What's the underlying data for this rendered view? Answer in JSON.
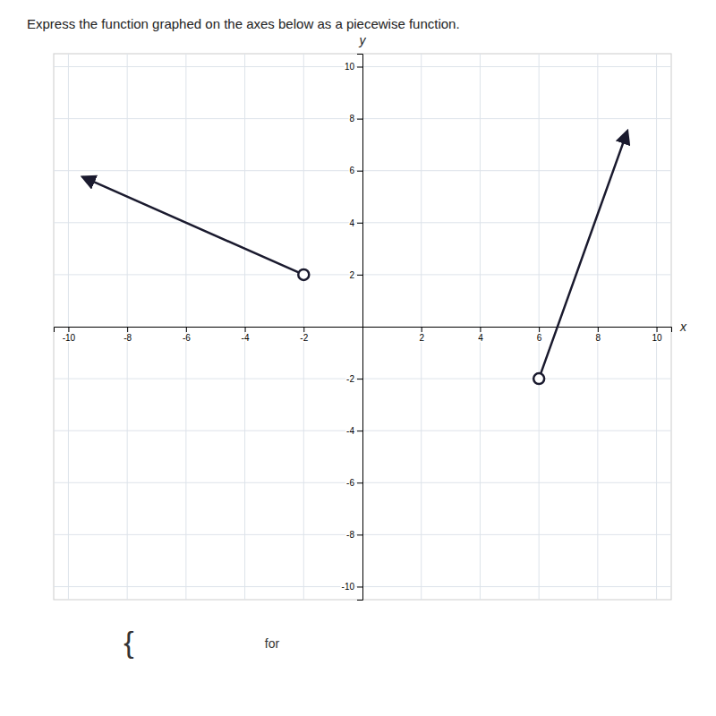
{
  "chart_data": {
    "type": "line",
    "title": "Express the function graphed on the axes below as a piecewise function.",
    "x_label": "x",
    "y_label": "y",
    "series": [
      {
        "color": "#1a1a2e",
        "marker": "open-circle",
        "line_style": "solid",
        "x": [
          -2,
          -9.5
        ],
        "values": [
          2,
          5.75
        ]
      },
      {
        "color": "#1a1a2e",
        "marker": "open-circle",
        "line_style": "solid",
        "x": [
          6,
          9.0
        ],
        "values": [
          -2,
          7.5
        ]
      }
    ],
    "xlim": [
      -10.5,
      10.5
    ],
    "ylim": [
      -10.5,
      10.5
    ],
    "xticks": [
      -10,
      -8,
      -6,
      -4,
      -2,
      2,
      4,
      6,
      8,
      10
    ],
    "yticks": [
      -10,
      -8,
      -6,
      -4,
      -2,
      2,
      4,
      6,
      8,
      10
    ],
    "grid": true,
    "annotations": [
      "{",
      "for"
    ]
  }
}
